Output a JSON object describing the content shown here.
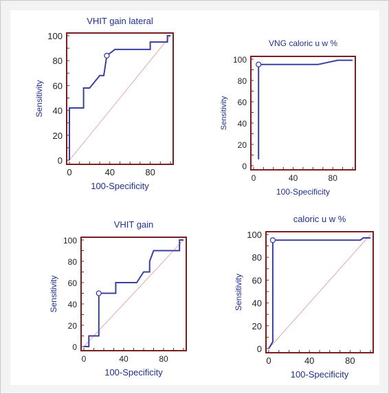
{
  "colors": {
    "curve": "#3b3fa0",
    "axis_text": "#1f2f8f",
    "frame": "#7a1f1f",
    "diagonal": "#e3a9a9",
    "marker_fill": "#ffffff"
  },
  "chart_data": [
    {
      "type": "line",
      "title": "VHIT gain lateral",
      "xlabel": "100-Specificity",
      "ylabel": "Sensitivity",
      "xlim": [
        0,
        100
      ],
      "ylim": [
        0,
        100
      ],
      "xticks": [
        0,
        40,
        80
      ],
      "yticks": [
        0,
        20,
        40,
        60,
        80,
        100
      ],
      "diagonal": true,
      "series": [
        {
          "points": [
            [
              0,
              0
            ],
            [
              0,
              42
            ],
            [
              14,
              42
            ],
            [
              14,
              58
            ],
            [
              20,
              58
            ],
            [
              20,
              58
            ],
            [
              30,
              68
            ],
            [
              34,
              68
            ],
            [
              37,
              84
            ],
            [
              45,
              89
            ],
            [
              80,
              89
            ],
            [
              80,
              95
            ],
            [
              97,
              95
            ],
            [
              97,
              100
            ],
            [
              100,
              100
            ]
          ]
        }
      ],
      "marker": [
        37,
        84
      ]
    },
    {
      "type": "line",
      "title": "VNG caloric u w %",
      "xlabel": "100-Specificity",
      "ylabel": "Sensitivity",
      "xlim": [
        0,
        100
      ],
      "ylim": [
        0,
        100
      ],
      "xticks": [
        0,
        40,
        80
      ],
      "yticks": [
        0,
        20,
        40,
        60,
        80,
        100
      ],
      "diagonal": false,
      "series": [
        {
          "points": [
            [
              5,
              6
            ],
            [
              5,
              95
            ],
            [
              65,
              95
            ],
            [
              85,
              99
            ],
            [
              100,
              99
            ]
          ]
        }
      ],
      "marker": [
        5,
        95
      ]
    },
    {
      "type": "line",
      "title": "VHIT gain",
      "xlabel": "100-Specificity",
      "ylabel": "Sensitivity",
      "xlim": [
        0,
        100
      ],
      "ylim": [
        0,
        100
      ],
      "xticks": [
        0,
        40,
        80
      ],
      "yticks": [
        0,
        20,
        40,
        60,
        80,
        100
      ],
      "diagonal": true,
      "series": [
        {
          "points": [
            [
              0,
              0
            ],
            [
              5,
              0
            ],
            [
              5,
              10
            ],
            [
              15,
              10
            ],
            [
              15,
              50
            ],
            [
              32,
              50
            ],
            [
              32,
              60
            ],
            [
              53,
              60
            ],
            [
              60,
              70
            ],
            [
              66,
              70
            ],
            [
              66,
              80
            ],
            [
              70,
              90
            ],
            [
              96,
              90
            ],
            [
              96,
              100
            ],
            [
              100,
              100
            ]
          ]
        }
      ],
      "marker": [
        15,
        50
      ]
    },
    {
      "type": "line",
      "title": "caloric u w %",
      "xlabel": "100-Specificity",
      "ylabel": "Sensitivity",
      "xlim": [
        0,
        100
      ],
      "ylim": [
        0,
        100
      ],
      "xticks": [
        0,
        40,
        80
      ],
      "yticks": [
        0,
        20,
        40,
        60,
        80,
        100
      ],
      "diagonal": true,
      "series": [
        {
          "points": [
            [
              0,
              0
            ],
            [
              4,
              6
            ],
            [
              4,
              95
            ],
            [
              90,
              95
            ],
            [
              93,
              97
            ],
            [
              100,
              97
            ]
          ]
        }
      ],
      "marker": [
        4,
        95
      ]
    }
  ]
}
